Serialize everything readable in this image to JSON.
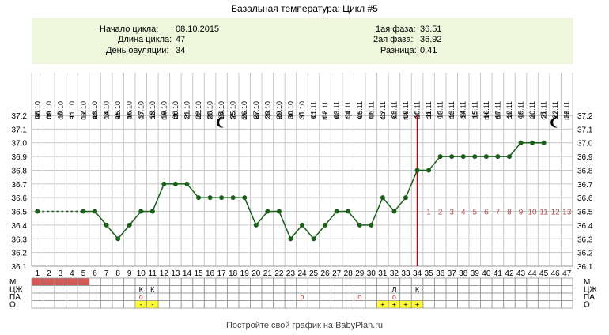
{
  "title": "Базальная температура: Цикл #5",
  "info": {
    "start_label": "Начало цикла:",
    "start_value": "08.10.2015",
    "length_label": "Длина цикла:",
    "length_value": "47",
    "ovulation_label": "День овуляции:",
    "ovulation_value": "34",
    "phase1_label": "1ая фаза:",
    "phase1_value": "36.51",
    "phase2_label": "2ая фаза:",
    "phase2_value": "36.92",
    "diff_label": "Разница:",
    "diff_value": "0,41"
  },
  "footer": "Постройте свой график на BabyPlan.ru",
  "colors": {
    "line": "#1a5e1a",
    "marker": "#1a5e1a",
    "ovulation": "#cc0000",
    "phase_numbers": "#b05050",
    "menses": "#d45a5a",
    "highlight": "#ffff33",
    "info_bg": "#eef7dc",
    "grid": "#c8c8c8"
  },
  "moon_icon_days": [
    17,
    46
  ],
  "chart_data": {
    "type": "line",
    "title": "Базальная температура: Цикл #5",
    "ylim": [
      36.1,
      37.2
    ],
    "yticks": [
      "37.2",
      "37.1",
      "37.0",
      "36.9",
      "36.8",
      "36.7",
      "36.6",
      "36.5",
      "36.4",
      "36.3",
      "36.2",
      "36.1"
    ],
    "days": [
      1,
      2,
      3,
      4,
      5,
      6,
      7,
      8,
      9,
      10,
      11,
      12,
      13,
      14,
      15,
      16,
      17,
      18,
      19,
      20,
      21,
      22,
      23,
      24,
      25,
      26,
      27,
      28,
      29,
      30,
      31,
      32,
      33,
      34,
      35,
      36,
      37,
      38,
      39,
      40,
      41,
      42,
      43,
      44,
      45,
      46,
      47
    ],
    "dates": [
      "08.10",
      "09.10",
      "10.10",
      "11.10",
      "12.10",
      "13.10",
      "14.10",
      "15.10",
      "16.10",
      "17.10",
      "18.10",
      "19.10",
      "20.10",
      "21.10",
      "22.10",
      "23.10",
      "24.10",
      "25.10",
      "26.10",
      "27.10",
      "28.10",
      "29.10",
      "30.10",
      "31.10",
      "01.11",
      "02.11",
      "03.11",
      "04.11",
      "05.11",
      "06.11",
      "07.11",
      "08.11",
      "09.11",
      "10.11",
      "11.11",
      "12.11",
      "13.11",
      "14.11",
      "15.11",
      "16.11",
      "17.11",
      "18.11",
      "19.11",
      "20.11",
      "21.11",
      "22.11",
      "23.11"
    ],
    "weekdays": [
      "чт",
      "пт",
      "сб",
      "вс",
      "пн",
      "вт",
      "ср",
      "чт",
      "пт",
      "сб",
      "вс",
      "пн",
      "вт",
      "ср",
      "чт",
      "пт",
      "сб",
      "вс",
      "пн",
      "вт",
      "ср",
      "чт",
      "пт",
      "сб",
      "вс",
      "пн",
      "вт",
      "ср",
      "чт",
      "пт",
      "сб",
      "вс",
      "пн",
      "вт",
      "ср",
      "чт",
      "пт",
      "сб",
      "вс",
      "пн",
      "вт",
      "ср",
      "чт",
      "пт",
      "сб",
      "вс",
      "пн"
    ],
    "series": [
      {
        "values": [
          36.5,
          null,
          null,
          null,
          36.5,
          36.5,
          36.4,
          36.3,
          36.4,
          36.5,
          36.5,
          36.7,
          36.7,
          36.7,
          36.6,
          36.6,
          36.6,
          36.6,
          36.6,
          36.4,
          36.5,
          36.5,
          36.3,
          36.4,
          36.3,
          36.4,
          36.5,
          36.5,
          36.4,
          36.4,
          36.6,
          36.5,
          36.6,
          36.8,
          36.8,
          36.9,
          36.9,
          36.9,
          36.9,
          36.9,
          36.9,
          36.9,
          37.0,
          37.0,
          37.0,
          null,
          null
        ]
      }
    ],
    "ovulation_day": 34,
    "phase2_numbers": [
      "1",
      "2",
      "3",
      "4",
      "5",
      "6",
      "7",
      "8",
      "9",
      "10",
      "11",
      "12",
      "13"
    ],
    "phase2_numbers_start_day": 35,
    "phase2_numbers_value": 36.5,
    "rows": [
      {
        "label": "М",
        "marks": {
          "1": "menses",
          "2": "menses",
          "3": "menses",
          "4": "menses",
          "5": "menses"
        }
      },
      {
        "label": "ЦЖ",
        "marks": {
          "10": "К",
          "11": "К",
          "32": "Л",
          "34": "К"
        }
      },
      {
        "label": "ПА",
        "marks": {
          "10": "о",
          "24": "о",
          "29": "о",
          "32": "о"
        }
      },
      {
        "label": "О",
        "marks": {
          "10": "-",
          "11": "-",
          "31": "+",
          "32": "+",
          "33": "+",
          "34": "+"
        }
      }
    ]
  }
}
